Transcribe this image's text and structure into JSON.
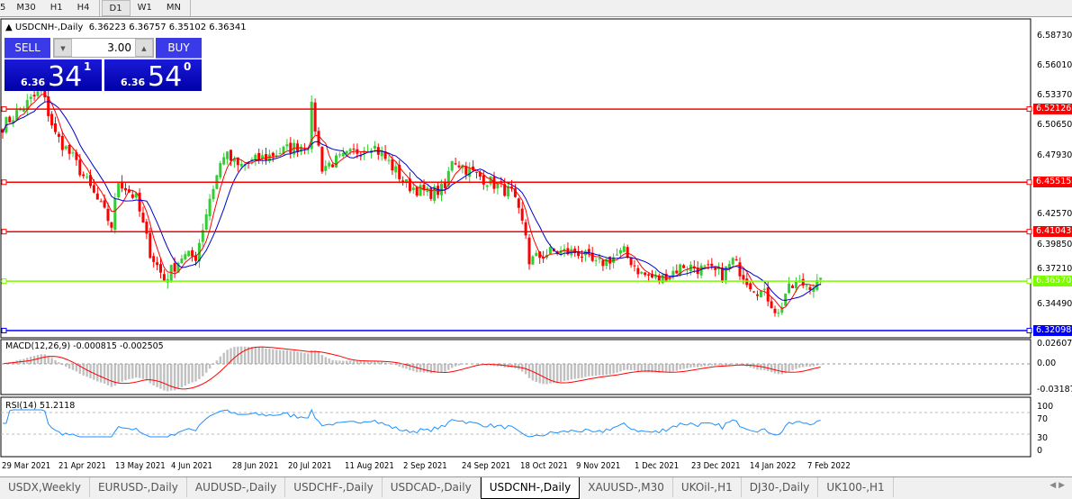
{
  "toolbar": {
    "timeframes": [
      "5",
      "M30",
      "H1",
      "H4",
      "D1",
      "W1",
      "MN"
    ],
    "active": "D1"
  },
  "header": {
    "symbol_line": "USDCNH-,Daily",
    "ohlc": "6.36223 6.36757 6.35102 6.36341"
  },
  "trade_panel": {
    "sell_label": "SELL",
    "buy_label": "BUY",
    "lot_value": "3.00",
    "bid_prefix": "6.36",
    "bid_big": "34",
    "bid_sup": "1",
    "ask_prefix": "6.36",
    "ask_big": "54",
    "ask_sup": "0"
  },
  "price_axis": [
    "6.58730",
    "6.56010",
    "6.53370",
    "6.50650",
    "6.47930",
    "6.42570",
    "6.39850",
    "6.37210",
    "6.34490"
  ],
  "levels": [
    {
      "price": 6.52126,
      "label": "6.52126",
      "color": "#ff0000"
    },
    {
      "price": 6.45515,
      "label": "6.45515",
      "color": "#ff0000"
    },
    {
      "price": 6.41043,
      "label": "6.41043",
      "color": "#ff0000"
    },
    {
      "price": 6.3657,
      "label": "6.36570",
      "color": "#7cfc00"
    },
    {
      "price": 6.32098,
      "label": "6.32098",
      "color": "#0000ff"
    }
  ],
  "macd": {
    "label": "MACD(12,26,9) -0.000815 -0.002505",
    "axis": [
      "0.02607",
      "0.00",
      "-0.031872"
    ]
  },
  "rsi": {
    "label": "RSI(14) 51.2118",
    "axis": [
      "100",
      "70",
      "30",
      "0"
    ]
  },
  "dates": [
    "29 Mar 2021",
    "21 Apr 2021",
    "13 May 2021",
    "4 Jun 2021",
    "28 Jun 2021",
    "20 Jul 2021",
    "11 Aug 2021",
    "2 Sep 2021",
    "24 Sep 2021",
    "18 Oct 2021",
    "9 Nov 2021",
    "1 Dec 2021",
    "23 Dec 2021",
    "14 Jan 2022",
    "7 Feb 2022"
  ],
  "tabs": [
    "USDX,Weekly",
    "EURUSD-,Daily",
    "AUDUSD-,Daily",
    "USDCHF-,Daily",
    "USDCAD-,Daily",
    "USDCNH-,Daily",
    "XAUUSD-,M30",
    "UKOil-,H1",
    "DJ30-,Daily",
    "UK100-,H1"
  ],
  "active_tab": "USDCNH-,Daily",
  "colors": {
    "bull": "#32cd32",
    "bear": "#ff0000",
    "ma_fast": "#ff0000",
    "ma_slow": "#0000c8",
    "rsi": "#1e90ff",
    "macd_hist": "#c0c0c0"
  },
  "chart_data": {
    "type": "candlestick",
    "symbol": "USDCNH-",
    "timeframe": "Daily",
    "close_path": [
      [
        0,
        6.506
      ],
      [
        11,
        6.538
      ],
      [
        15,
        6.498
      ],
      [
        20,
        6.477
      ],
      [
        28,
        6.433
      ],
      [
        31,
        6.416
      ],
      [
        33,
        6.457
      ],
      [
        38,
        6.44
      ],
      [
        42,
        6.392
      ],
      [
        46,
        6.367
      ],
      [
        51,
        6.388
      ],
      [
        55,
        6.388
      ],
      [
        59,
        6.441
      ],
      [
        63,
        6.481
      ],
      [
        67,
        6.469
      ],
      [
        74,
        6.477
      ],
      [
        82,
        6.486
      ],
      [
        87,
        6.49
      ],
      [
        88,
        6.522
      ],
      [
        91,
        6.469
      ],
      [
        97,
        6.477
      ],
      [
        105,
        6.49
      ],
      [
        110,
        6.473
      ],
      [
        115,
        6.453
      ],
      [
        121,
        6.445
      ],
      [
        126,
        6.449
      ],
      [
        128,
        6.477
      ],
      [
        133,
        6.465
      ],
      [
        138,
        6.457
      ],
      [
        145,
        6.445
      ],
      [
        149,
        6.408
      ],
      [
        150,
        6.384
      ],
      [
        156,
        6.392
      ],
      [
        164,
        6.392
      ],
      [
        169,
        6.38
      ],
      [
        177,
        6.392
      ],
      [
        182,
        6.372
      ],
      [
        187,
        6.367
      ],
      [
        194,
        6.38
      ],
      [
        200,
        6.376
      ],
      [
        205,
        6.372
      ],
      [
        208,
        6.384
      ],
      [
        213,
        6.363
      ],
      [
        218,
        6.351
      ],
      [
        221,
        6.335
      ],
      [
        223,
        6.355
      ],
      [
        226,
        6.363
      ],
      [
        231,
        6.363
      ],
      [
        233,
        6.363
      ]
    ]
  }
}
